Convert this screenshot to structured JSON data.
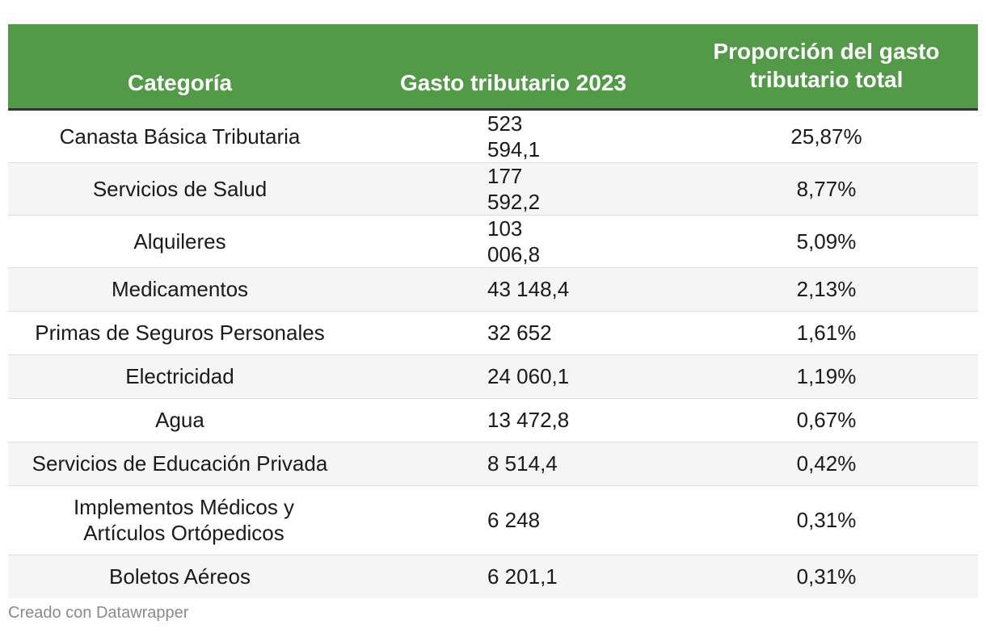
{
  "chart_data": {
    "type": "table",
    "columns": [
      "Categoría",
      "Gasto tributario 2023",
      "Proporción del gasto tributario total"
    ],
    "rows": [
      {
        "category": "Canasta Básica Tributaria",
        "value": "523 594,1",
        "share": "25,87%"
      },
      {
        "category": "Servicios de Salud",
        "value": "177 592,2",
        "share": "8,77%"
      },
      {
        "category": "Alquileres",
        "value": "103 006,8",
        "share": "5,09%"
      },
      {
        "category": "Medicamentos",
        "value": "43 148,4",
        "share": "2,13%"
      },
      {
        "category": "Primas de Seguros Personales",
        "value": "32 652",
        "share": "1,61%"
      },
      {
        "category": "Electricidad",
        "value": "24 060,1",
        "share": "1,19%"
      },
      {
        "category": "Agua",
        "value": "13 472,8",
        "share": "0,67%"
      },
      {
        "category": "Servicios de Educación Privada",
        "value": "8 514,4",
        "share": "0,42%"
      },
      {
        "category": "Implementos Médicos y Artículos Ortópedicos",
        "value": "6 248",
        "share": "0,31%"
      },
      {
        "category": "Boletos Aéreos",
        "value": "6 201,1",
        "share": "0,31%"
      }
    ],
    "numeric_values": [
      523594.1,
      177592.2,
      103006.8,
      43148.4,
      32652,
      24060.1,
      13472.8,
      8514.4,
      6248,
      6201.1
    ],
    "numeric_shares_pct": [
      25.87,
      8.77,
      5.09,
      2.13,
      1.61,
      1.19,
      0.67,
      0.42,
      0.31,
      0.31
    ]
  },
  "footer": "Creado con Datawrapper",
  "colors": {
    "header_bg": "#529a48",
    "header_text": "#ffffff",
    "stripe": "#f5f5f5"
  }
}
